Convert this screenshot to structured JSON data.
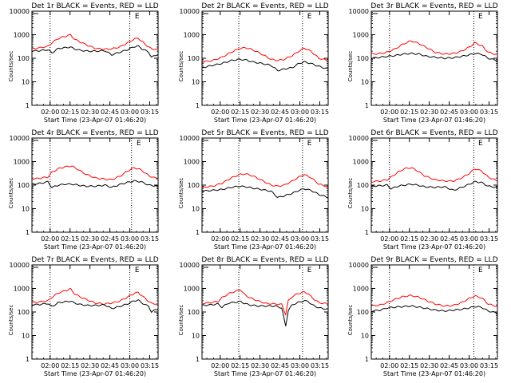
{
  "figure": {
    "title_template": "{det} BLACK = Events, RED = LLD",
    "xlabel": "Start Time (23-Apr-07 01:46:20)",
    "ylabel": "Counts/sec",
    "x_tick_labels": [
      "02:00",
      "02:15",
      "02:30",
      "02:45",
      "03:00",
      "03:15"
    ],
    "y_tick_labels": [
      "1",
      "10",
      "100",
      "1000",
      "10000"
    ],
    "marker_label": "E"
  },
  "colors": {
    "events": "#000000",
    "lld": "#ff0000",
    "axis": "#000000"
  },
  "chart_data": [
    {
      "type": "line",
      "panel": "Det 1r",
      "title": "Det 1r BLACK = Events, RED = LLD",
      "xlabel": "Start Time (23-Apr-07 01:46:20)",
      "ylabel": "Counts/sec",
      "x_unit": "minutes after 01:46:20",
      "xlim": [
        0,
        95
      ],
      "ylim": [
        1,
        10000
      ],
      "yscale": "log",
      "vlines": [
        13.7,
        73.7
      ],
      "marker_x": 77.5,
      "series": [
        {
          "name": "LLD",
          "x": [
            0,
            6,
            12,
            15,
            20,
            25,
            29,
            32,
            36,
            42,
            48,
            55,
            60,
            66,
            72,
            77,
            80,
            83,
            88,
            90,
            95
          ],
          "y": [
            250,
            280,
            320,
            450,
            700,
            850,
            1000,
            650,
            500,
            350,
            260,
            240,
            250,
            300,
            450,
            650,
            720,
            500,
            300,
            250,
            240
          ]
        },
        {
          "name": "Events",
          "x": [
            0,
            6,
            12,
            15,
            20,
            25,
            29,
            32,
            36,
            42,
            48,
            55,
            60,
            66,
            72,
            77,
            80,
            83,
            88,
            90,
            95
          ],
          "y": [
            200,
            210,
            230,
            170,
            260,
            280,
            300,
            250,
            220,
            200,
            200,
            210,
            140,
            180,
            230,
            310,
            330,
            250,
            180,
            110,
            150
          ]
        }
      ]
    },
    {
      "type": "line",
      "panel": "Det 2r",
      "title": "Det 2r BLACK = Events, RED = LLD",
      "xlabel": "Start Time (23-Apr-07 01:46:20)",
      "ylabel": "Counts/sec",
      "x_unit": "minutes after 01:46:20",
      "xlim": [
        0,
        95
      ],
      "ylim": [
        1,
        10000
      ],
      "yscale": "log",
      "vlines": [
        27.7,
        75.7
      ],
      "marker_x": 79.2,
      "series": [
        {
          "name": "LLD",
          "x": [
            0,
            8,
            15,
            22,
            28,
            33,
            38,
            45,
            52,
            57,
            62,
            68,
            73,
            77,
            82,
            88,
            95
          ],
          "y": [
            70,
            80,
            110,
            180,
            260,
            280,
            230,
            150,
            90,
            80,
            90,
            130,
            200,
            270,
            200,
            100,
            80
          ]
        },
        {
          "name": "Events",
          "x": [
            0,
            8,
            15,
            22,
            28,
            33,
            38,
            45,
            52,
            57,
            62,
            68,
            73,
            77,
            82,
            88,
            95
          ],
          "y": [
            40,
            50,
            60,
            80,
            90,
            85,
            70,
            60,
            50,
            30,
            35,
            40,
            60,
            70,
            60,
            45,
            35
          ]
        }
      ]
    },
    {
      "type": "line",
      "panel": "Det 3r",
      "title": "Det 3r BLACK = Events, RED = LLD",
      "xlabel": "Start Time (23-Apr-07 01:46:20)",
      "ylabel": "Counts/sec",
      "x_unit": "minutes after 01:46:20",
      "xlim": [
        0,
        95
      ],
      "ylim": [
        1,
        10000
      ],
      "yscale": "log",
      "vlines": [
        13.7,
        77.2
      ],
      "marker_x": 80.6,
      "series": [
        {
          "name": "LLD",
          "x": [
            0,
            7,
            12,
            18,
            24,
            30,
            36,
            42,
            48,
            55,
            62,
            68,
            74,
            78,
            83,
            88,
            95
          ],
          "y": [
            150,
            160,
            180,
            250,
            400,
            550,
            420,
            280,
            180,
            150,
            160,
            200,
            300,
            450,
            350,
            180,
            140
          ]
        },
        {
          "name": "Events",
          "x": [
            0,
            7,
            12,
            18,
            24,
            30,
            36,
            42,
            48,
            55,
            62,
            68,
            74,
            78,
            83,
            88,
            95
          ],
          "y": [
            100,
            110,
            120,
            130,
            150,
            160,
            150,
            120,
            110,
            100,
            105,
            120,
            140,
            160,
            150,
            100,
            80
          ]
        }
      ]
    },
    {
      "type": "line",
      "panel": "Det 4r",
      "title": "Det 4r BLACK = Events, RED = LLD",
      "xlabel": "Start Time (23-Apr-07 01:46:20)",
      "ylabel": "Counts/sec",
      "x_unit": "minutes after 01:46:20",
      "xlim": [
        0,
        95
      ],
      "ylim": [
        1,
        10000
      ],
      "yscale": "log",
      "vlines": [
        13.7,
        75.0
      ],
      "marker_x": 78.8,
      "series": [
        {
          "name": "LLD",
          "x": [
            0,
            7,
            12,
            15,
            20,
            25,
            30,
            35,
            40,
            48,
            55,
            60,
            67,
            72,
            77,
            82,
            88,
            95
          ],
          "y": [
            180,
            200,
            220,
            350,
            500,
            600,
            650,
            450,
            300,
            200,
            180,
            170,
            250,
            400,
            550,
            450,
            250,
            180
          ]
        },
        {
          "name": "Events",
          "x": [
            0,
            7,
            12,
            15,
            20,
            25,
            30,
            35,
            40,
            48,
            55,
            60,
            67,
            72,
            77,
            82,
            88,
            95
          ],
          "y": [
            110,
            120,
            140,
            80,
            100,
            110,
            110,
            100,
            90,
            90,
            100,
            80,
            110,
            130,
            150,
            140,
            100,
            90
          ]
        }
      ]
    },
    {
      "type": "line",
      "panel": "Det 5r",
      "title": "Det 5r BLACK = Events, RED = LLD",
      "xlabel": "Start Time (23-Apr-07 01:46:20)",
      "ylabel": "Counts/sec",
      "x_unit": "minutes after 01:46:20",
      "xlim": [
        0,
        95
      ],
      "ylim": [
        1,
        10000
      ],
      "yscale": "log",
      "vlines": [
        27.7,
        75.7
      ],
      "marker_x": 79.2,
      "series": [
        {
          "name": "LLD",
          "x": [
            0,
            8,
            15,
            22,
            28,
            33,
            38,
            45,
            52,
            57,
            62,
            68,
            73,
            77,
            82,
            88,
            95
          ],
          "y": [
            80,
            90,
            120,
            200,
            280,
            300,
            250,
            160,
            100,
            90,
            100,
            150,
            220,
            280,
            210,
            110,
            85
          ]
        },
        {
          "name": "Events",
          "x": [
            0,
            8,
            15,
            22,
            28,
            33,
            38,
            45,
            52,
            57,
            62,
            68,
            73,
            77,
            82,
            88,
            95
          ],
          "y": [
            55,
            60,
            65,
            80,
            90,
            85,
            75,
            65,
            55,
            30,
            35,
            45,
            60,
            70,
            60,
            40,
            30
          ]
        }
      ]
    },
    {
      "type": "line",
      "panel": "Det 6r",
      "title": "Det 6r BLACK = Events, RED = LLD",
      "xlabel": "Start Time (23-Apr-07 01:46:20)",
      "ylabel": "Counts/sec",
      "x_unit": "minutes after 01:46:20",
      "xlim": [
        0,
        95
      ],
      "ylim": [
        1,
        10000
      ],
      "yscale": "log",
      "vlines": [
        13.7,
        77.2
      ],
      "marker_x": 80.6,
      "series": [
        {
          "name": "LLD",
          "x": [
            0,
            7,
            12,
            15,
            20,
            25,
            30,
            35,
            40,
            48,
            55,
            62,
            68,
            74,
            78,
            83,
            88,
            95
          ],
          "y": [
            140,
            150,
            170,
            220,
            350,
            500,
            550,
            400,
            250,
            170,
            150,
            150,
            200,
            320,
            500,
            400,
            220,
            150
          ]
        },
        {
          "name": "Events",
          "x": [
            0,
            7,
            12,
            15,
            20,
            25,
            30,
            35,
            40,
            48,
            55,
            62,
            68,
            74,
            78,
            83,
            88,
            95
          ],
          "y": [
            90,
            95,
            100,
            70,
            90,
            100,
            110,
            100,
            85,
            80,
            85,
            60,
            80,
            110,
            140,
            130,
            90,
            80
          ]
        }
      ]
    },
    {
      "type": "line",
      "panel": "Det 7r",
      "title": "Det 7r BLACK = Events, RED = LLD",
      "xlabel": "Start Time (23-Apr-07 01:46:20)",
      "ylabel": "Counts/sec",
      "x_unit": "minutes after 01:46:20",
      "xlim": [
        0,
        95
      ],
      "ylim": [
        1,
        10000
      ],
      "yscale": "log",
      "vlines": [
        13.7,
        73.7
      ],
      "marker_x": 77.5,
      "series": [
        {
          "name": "LLD",
          "x": [
            0,
            6,
            12,
            15,
            20,
            25,
            29,
            32,
            36,
            42,
            48,
            55,
            60,
            66,
            72,
            77,
            80,
            83,
            88,
            90,
            95
          ],
          "y": [
            250,
            270,
            300,
            420,
            650,
            800,
            950,
            600,
            450,
            320,
            240,
            220,
            240,
            290,
            430,
            620,
            680,
            480,
            280,
            230,
            220
          ]
        },
        {
          "name": "Events",
          "x": [
            0,
            6,
            12,
            15,
            20,
            25,
            29,
            32,
            36,
            42,
            48,
            55,
            60,
            66,
            72,
            77,
            80,
            83,
            88,
            90,
            95
          ],
          "y": [
            200,
            210,
            230,
            170,
            250,
            270,
            290,
            240,
            210,
            190,
            190,
            200,
            140,
            170,
            220,
            300,
            320,
            240,
            170,
            100,
            140
          ]
        }
      ]
    },
    {
      "type": "line",
      "panel": "Det 8r",
      "title": "Det 8r BLACK = Events, RED = LLD",
      "xlabel": "Start Time (23-Apr-07 01:46:20)",
      "ylabel": "Counts/sec",
      "x_unit": "minutes after 01:46:20",
      "xlim": [
        0,
        95
      ],
      "ylim": [
        1,
        10000
      ],
      "yscale": "log",
      "vlines": [
        27.7,
        75.7
      ],
      "marker_x": 79.2,
      "series": [
        {
          "name": "LLD",
          "x": [
            0,
            6,
            12,
            15,
            20,
            25,
            29,
            32,
            36,
            42,
            48,
            55,
            60,
            63,
            65,
            68,
            72,
            77,
            80,
            83,
            88,
            95
          ],
          "y": [
            230,
            250,
            280,
            400,
            600,
            750,
            900,
            550,
            400,
            300,
            230,
            220,
            210,
            80,
            300,
            450,
            600,
            700,
            600,
            400,
            250,
            220
          ]
        },
        {
          "name": "Events",
          "x": [
            0,
            6,
            12,
            15,
            20,
            25,
            29,
            32,
            36,
            42,
            48,
            55,
            60,
            63,
            65,
            68,
            72,
            77,
            80,
            83,
            88,
            95
          ],
          "y": [
            190,
            200,
            220,
            160,
            240,
            260,
            280,
            230,
            200,
            180,
            180,
            180,
            150,
            25,
            120,
            200,
            250,
            300,
            280,
            200,
            150,
            130
          ]
        }
      ]
    },
    {
      "type": "line",
      "panel": "Det 9r",
      "title": "Det 9r BLACK = Events, RED = LLD",
      "xlabel": "Start Time (23-Apr-07 01:46:20)",
      "ylabel": "Counts/sec",
      "x_unit": "minutes after 01:46:20",
      "xlim": [
        0,
        95
      ],
      "ylim": [
        1,
        10000
      ],
      "yscale": "log",
      "vlines": [
        13.7,
        77.2
      ],
      "marker_x": 80.6,
      "series": [
        {
          "name": "LLD",
          "x": [
            0,
            7,
            12,
            18,
            24,
            30,
            36,
            42,
            48,
            55,
            62,
            68,
            74,
            78,
            83,
            88,
            95
          ],
          "y": [
            180,
            200,
            250,
            350,
            450,
            500,
            420,
            300,
            220,
            180,
            190,
            250,
            380,
            480,
            400,
            220,
            170
          ]
        },
        {
          "name": "Events",
          "x": [
            0,
            7,
            12,
            18,
            24,
            30,
            36,
            42,
            48,
            55,
            62,
            68,
            74,
            78,
            83,
            88,
            95
          ],
          "y": [
            110,
            120,
            150,
            160,
            170,
            180,
            160,
            140,
            120,
            110,
            120,
            130,
            150,
            170,
            160,
            110,
            90
          ]
        }
      ]
    }
  ]
}
